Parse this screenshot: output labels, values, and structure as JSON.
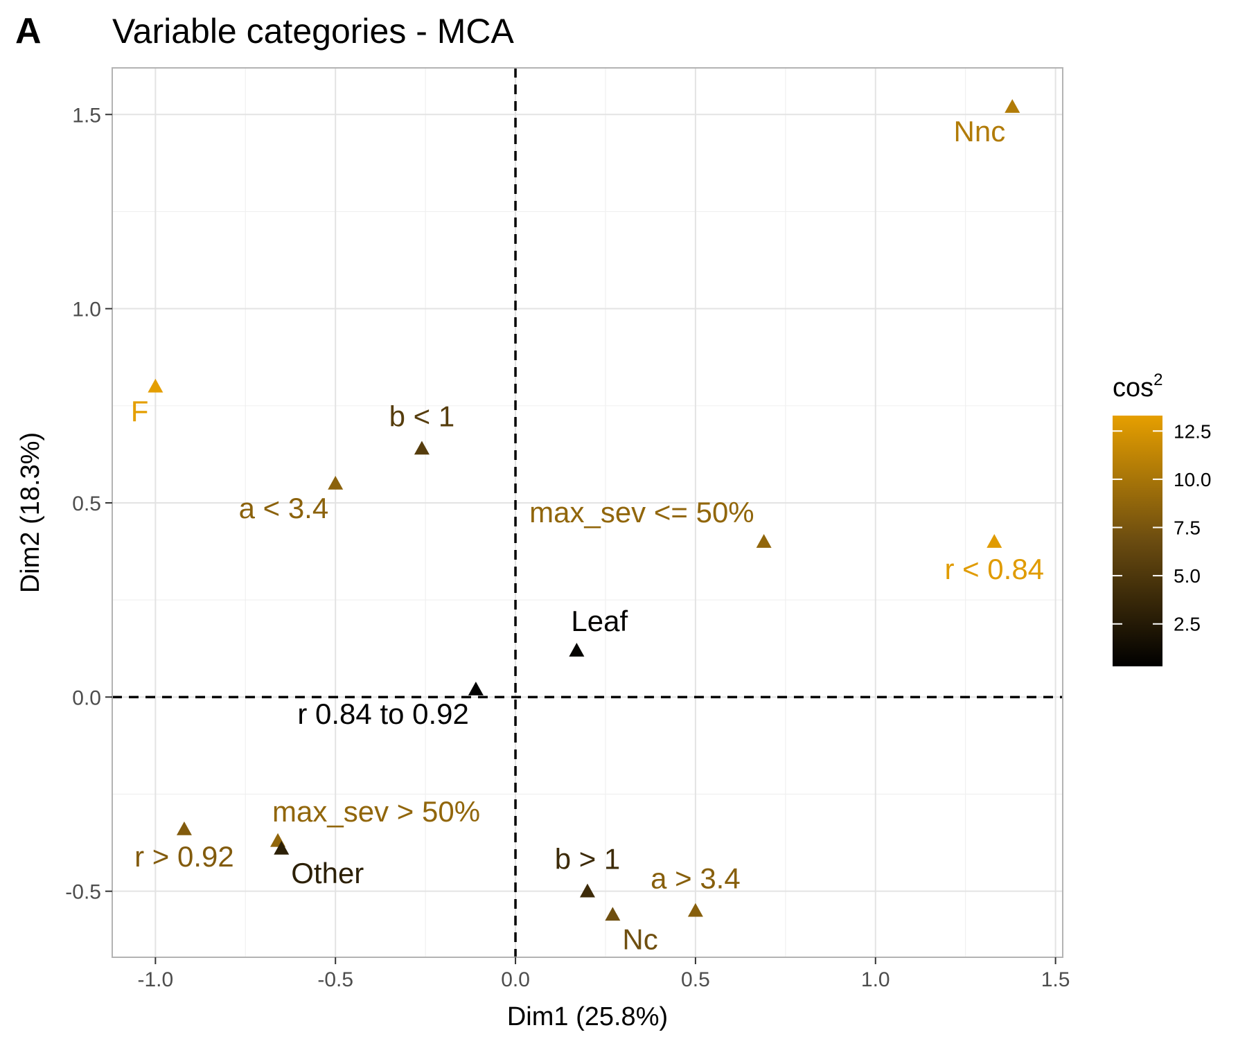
{
  "panel_letter": "A",
  "chart_data": {
    "type": "scatter",
    "title": "Variable categories - MCA",
    "xlabel": "Dim1 (25.8%)",
    "ylabel": "Dim2 (18.3%)",
    "xlim": [
      -1.12,
      1.52
    ],
    "ylim": [
      -0.67,
      1.62
    ],
    "x_ticks": [
      -1.0,
      -0.5,
      0.0,
      0.5,
      1.0,
      1.5
    ],
    "x_tick_labels": [
      "-1.0",
      "-0.5",
      "0.0",
      "0.5",
      "1.0",
      "1.5"
    ],
    "y_ticks": [
      -0.5,
      0.0,
      0.5,
      1.0,
      1.5
    ],
    "y_tick_labels": [
      "-0.5",
      "0.0",
      "0.5",
      "1.0",
      "1.5"
    ],
    "grid": true,
    "reference_lines": {
      "x": 0,
      "y": 0,
      "style": "dashed"
    },
    "marker": "triangle",
    "color_scale": {
      "title": "cos",
      "title_superscript": "2",
      "range": [
        0.3,
        13.3
      ],
      "low_color": "#000000",
      "high_color": "#E69F00",
      "ticks": [
        2.5,
        5.0,
        7.5,
        10.0,
        12.5
      ],
      "tick_labels": [
        "2.5",
        "5.0",
        "7.5",
        "10.0",
        "12.5"
      ],
      "position": "right"
    },
    "points": [
      {
        "label": "Nnc",
        "x": 1.38,
        "y": 1.52,
        "color_value": 10.5,
        "label_pos": "below-left"
      },
      {
        "label": "F",
        "x": -1.0,
        "y": 0.8,
        "color_value": 13.2,
        "label_pos": "below-left"
      },
      {
        "label": "b < 1",
        "x": -0.26,
        "y": 0.64,
        "color_value": 5.5,
        "label_pos": "above"
      },
      {
        "label": "a < 3.4",
        "x": -0.5,
        "y": 0.55,
        "color_value": 8.5,
        "label_pos": "below-left"
      },
      {
        "label": "max_sev <= 50%",
        "x": 0.69,
        "y": 0.4,
        "color_value": 8.8,
        "label_pos": "above-left"
      },
      {
        "label": "r < 0.84",
        "x": 1.33,
        "y": 0.4,
        "color_value": 13.0,
        "label_pos": "below"
      },
      {
        "label": "Leaf",
        "x": 0.17,
        "y": 0.12,
        "color_value": 0.6,
        "label_pos": "above-right"
      },
      {
        "label": "r 0.84 to 0.92",
        "x": -0.11,
        "y": 0.02,
        "color_value": 0.3,
        "label_pos": "below-left"
      },
      {
        "label": "max_sev > 50%",
        "x": -0.66,
        "y": -0.37,
        "color_value": 8.8,
        "label_pos": "above-right"
      },
      {
        "label": "r > 0.92",
        "x": -0.92,
        "y": -0.34,
        "color_value": 8.0,
        "label_pos": "below"
      },
      {
        "label": "Other",
        "x": -0.65,
        "y": -0.39,
        "color_value": 3.0,
        "label_pos": "below-right"
      },
      {
        "label": "b > 1",
        "x": 0.2,
        "y": -0.5,
        "color_value": 4.0,
        "label_pos": "above"
      },
      {
        "label": "Nc",
        "x": 0.27,
        "y": -0.56,
        "color_value": 7.0,
        "label_pos": "below-right"
      },
      {
        "label": "a > 3.4",
        "x": 0.5,
        "y": -0.55,
        "color_value": 8.3,
        "label_pos": "above"
      }
    ]
  }
}
